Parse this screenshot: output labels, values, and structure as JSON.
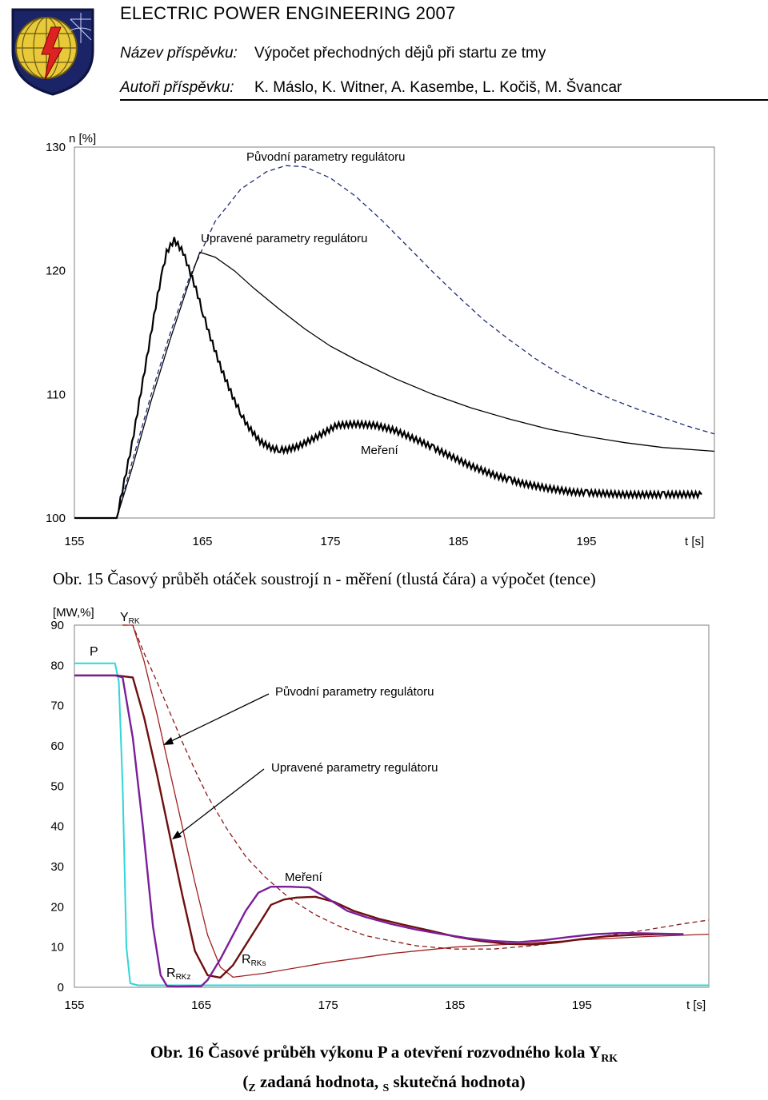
{
  "header": {
    "conference_title": "ELECTRIC POWER ENGINEERING 2007",
    "paper_label": "Název příspěvku:",
    "paper_title": "Výpočet přechodných dějů při startu ze tmy",
    "authors_label": "Autoři příspěvku:",
    "authors": "K. Máslo, K. Witner, A. Kasembe, L. Kočiš, M. Švancar"
  },
  "figure15": {
    "caption": "Obr.  15 Časový průběh otáček soustrojí n  - měření (tlustá čára) a výpočet (tence)",
    "chart_data": {
      "type": "line",
      "title": "",
      "xlabel": "t [s]",
      "ylabel": "n [%]",
      "xlim": [
        155,
        205
      ],
      "ylim": [
        100,
        130
      ],
      "x_ticks": [
        "155",
        "165",
        "175",
        "185",
        "195"
      ],
      "y_ticks": [
        "100",
        "110",
        "120",
        "130"
      ],
      "annotations": {
        "original": "Původní parametry regulátoru",
        "adjusted": "Upravené parametry regulátoru",
        "measurement": "Meření"
      },
      "series": [
        {
          "name": "Původní parametry regulátoru",
          "style": "dashed",
          "color": "#1f2a7a",
          "x": [
            155,
            158.3,
            159.5,
            161,
            162.5,
            164,
            166,
            168,
            170,
            171.5,
            173,
            175,
            177,
            179,
            181,
            183,
            185,
            187,
            189,
            191,
            193,
            195,
            197,
            199,
            201,
            203,
            205
          ],
          "y": [
            100,
            100,
            104.5,
            110,
            115,
            119.5,
            124,
            126.6,
            128,
            128.5,
            128.4,
            127.5,
            126,
            124.1,
            122,
            119.9,
            117.9,
            116,
            114.4,
            112.9,
            111.6,
            110.5,
            109.6,
            108.8,
            108.1,
            107.4,
            106.8
          ]
        },
        {
          "name": "Upravené parametry regulátoru",
          "style": "solid",
          "color": "#000000",
          "x": [
            155,
            158.3,
            159.5,
            161,
            162.5,
            164,
            164.8,
            166,
            167.5,
            169,
            171,
            173,
            175,
            177,
            180,
            183,
            186,
            189,
            192,
            195,
            198,
            201,
            205
          ],
          "y": [
            100,
            100,
            104,
            109.5,
            114.5,
            119.2,
            121.5,
            121.1,
            120,
            118.6,
            116.9,
            115.3,
            113.9,
            112.8,
            111.3,
            110,
            108.9,
            108,
            107.2,
            106.6,
            106.1,
            105.7,
            105.4
          ]
        },
        {
          "name": "Meření",
          "style": "solid-thick",
          "color": "#000000",
          "x": [
            155,
            158.3,
            159.5,
            160.5,
            161.5,
            162.2,
            162.8,
            163.5,
            164.5,
            165.5,
            166.5,
            167.5,
            168.5,
            169.5,
            170.5,
            171.5,
            172.5,
            174,
            175.5,
            177,
            178.5,
            180,
            182,
            184,
            186,
            188,
            190,
            192,
            194,
            196,
            198,
            200,
            202,
            204
          ],
          "y": [
            100,
            100,
            106,
            112,
            118,
            121.5,
            122.5,
            121.5,
            118.5,
            115,
            112,
            109.5,
            107.5,
            106.2,
            105.6,
            105.5,
            105.8,
            106.6,
            107.5,
            107.6,
            107.5,
            107.1,
            106.2,
            105.2,
            104.2,
            103.4,
            102.8,
            102.4,
            102.1,
            102,
            101.9,
            101.9,
            101.9,
            101.9
          ]
        }
      ]
    }
  },
  "figure16": {
    "caption_line1": "Obr.  16 Časové průběh výkonu P a otevření rozvodného kola Y",
    "caption_line1_sub": "RK",
    "caption_line2_open": "(",
    "caption_z_sub": "Z",
    "caption_line2_mid": " zadaná hodnota, ",
    "caption_s_sub": "S",
    "caption_line2_end": " skutečná hodnota)",
    "chart_data": {
      "type": "line",
      "title": "",
      "xlabel": "t [s]",
      "ylabel": "[MW,%]",
      "xlim": [
        155,
        205
      ],
      "ylim": [
        0,
        90
      ],
      "x_ticks": [
        "155",
        "165",
        "175",
        "185",
        "195"
      ],
      "y_ticks": [
        "0",
        "10",
        "20",
        "30",
        "40",
        "50",
        "60",
        "70",
        "80",
        "90"
      ],
      "labels": {
        "yrk": "Y",
        "yrk_sub": "RK",
        "p": "P",
        "original": "Původní parametry regulátoru",
        "adjusted": "Upravené parametry regulátoru",
        "measurement": "Meření",
        "rrkz": "R",
        "rrkz_sub": "RKz",
        "rrks": "R",
        "rrks_sub": "RKs"
      },
      "series": [
        {
          "name": "P",
          "color": "#2fd6d6",
          "x": [
            155,
            158.2,
            158.5,
            158.8,
            159.1,
            159.4,
            160,
            165,
            180,
            205
          ],
          "y": [
            80.5,
            80.5,
            76,
            50,
            10,
            1,
            0.5,
            0.5,
            0.5,
            0.5
          ]
        },
        {
          "name": "Y_RK dashed",
          "color": "#8b1a1a",
          "style": "dashed",
          "x": [
            158.8,
            159.6,
            160.5,
            161.5,
            162.5,
            163.5,
            164.5,
            165.5,
            167,
            168.5,
            170,
            172,
            174,
            176,
            178,
            180,
            182,
            185,
            188,
            191,
            194,
            197,
            200,
            203,
            205
          ],
          "y": [
            90,
            90,
            83,
            76,
            68.5,
            61,
            54,
            47.5,
            39.5,
            32.5,
            27.5,
            22,
            18,
            15,
            12.8,
            11.5,
            10.3,
            9.5,
            9.5,
            10.3,
            11.5,
            12.8,
            14.2,
            15.8,
            16.7
          ]
        },
        {
          "name": "Y_RK thin",
          "color": "#a02020",
          "x": [
            158.8,
            159.6,
            160.5,
            161.5,
            162.5,
            163.5,
            164.5,
            165.5,
            166.5,
            167.5,
            170,
            175,
            180,
            185,
            190,
            195,
            200,
            205
          ],
          "y": [
            90,
            90,
            81,
            68,
            54,
            40,
            26,
            13,
            5,
            2.5,
            3.5,
            6.2,
            8.4,
            10,
            10.8,
            11.8,
            12.6,
            13.2
          ]
        },
        {
          "name": "R_RK measured",
          "color": "#6e0f0f",
          "style": "thick",
          "x": [
            155,
            158.3,
            159.6,
            160.5,
            161.5,
            162.5,
            163.5,
            164.5,
            165.5,
            166.5,
            167.5,
            168.5,
            169.5,
            170.5,
            171.5,
            172.5,
            174,
            175.5,
            177,
            179,
            181,
            183,
            185,
            187,
            189,
            191,
            193,
            195,
            197,
            199,
            201,
            203
          ],
          "y": [
            77.5,
            77.5,
            77,
            67,
            53,
            38,
            23,
            9,
            3,
            2.4,
            5.5,
            10.5,
            15.5,
            20.5,
            21.8,
            22.3,
            22.5,
            21.2,
            19,
            17,
            15.5,
            14.1,
            12.6,
            11.5,
            10.8,
            10.6,
            11.1,
            12,
            12.7,
            13,
            13.2,
            13.2
          ]
        },
        {
          "name": "R_RK purple",
          "color": "#7a1e9a",
          "style": "thick",
          "x": [
            155,
            158.2,
            158.8,
            159.6,
            160.4,
            161.2,
            161.8,
            162.3,
            163,
            165,
            165.5,
            166.5,
            167.5,
            168.5,
            169.5,
            170.5,
            172,
            173.5,
            175,
            176.5,
            178,
            180,
            182,
            184,
            186,
            188,
            190,
            192,
            194,
            196,
            198,
            200,
            203
          ],
          "y": [
            77.5,
            77.5,
            77,
            62,
            40,
            15,
            3,
            0.3,
            0.2,
            0.3,
            1.8,
            7,
            13,
            19,
            23.5,
            25,
            25,
            24.8,
            22,
            19,
            17.4,
            15.7,
            14.3,
            13.2,
            12.2,
            11.5,
            11.2,
            11.7,
            12.5,
            13.2,
            13.5,
            13.4,
            13.2
          ]
        }
      ]
    }
  }
}
